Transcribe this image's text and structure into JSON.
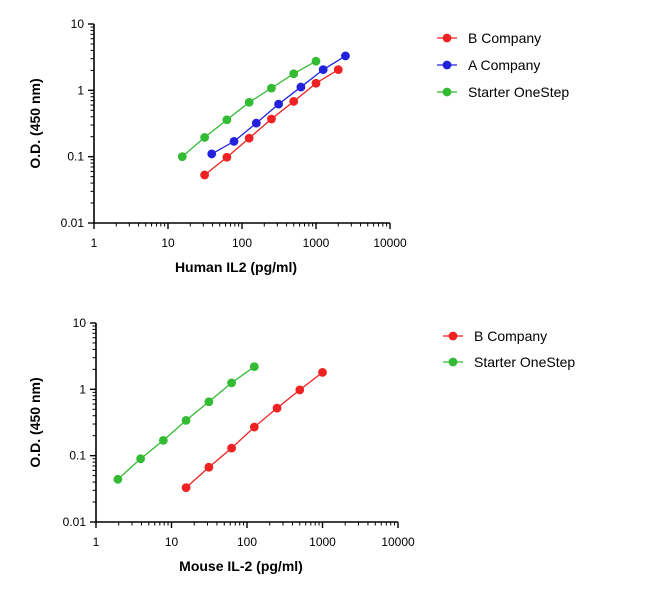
{
  "chart_data": [
    {
      "type": "scatter",
      "title": "",
      "xlabel": "Human IL2 (pg/ml)",
      "ylabel": "O.D. (450 nm)",
      "xscale": "log",
      "yscale": "log",
      "xlim": [
        1,
        10000
      ],
      "ylim": [
        0.01,
        10
      ],
      "xticks": [
        "1",
        "10",
        "100",
        "1000",
        "10000"
      ],
      "yticks": [
        "0.01",
        "0.1",
        "1",
        "10"
      ],
      "grid": false,
      "legend": "right",
      "series": [
        {
          "name": "B Company",
          "color": "#ee2222",
          "x": [
            31.25,
            62.5,
            125,
            250,
            500,
            1000,
            2000
          ],
          "y": [
            0.053,
            0.098,
            0.19,
            0.37,
            0.68,
            1.28,
            2.05
          ]
        },
        {
          "name": "A Company",
          "color": "#2222dd",
          "x": [
            39,
            78,
            156,
            312.5,
            625,
            1250,
            2500
          ],
          "y": [
            0.11,
            0.17,
            0.32,
            0.62,
            1.12,
            2.05,
            3.3
          ]
        },
        {
          "name": "Starter OneStep",
          "color": "#33bb33",
          "x": [
            15.6,
            31.25,
            62.5,
            125,
            250,
            500,
            1000
          ],
          "y": [
            0.1,
            0.195,
            0.36,
            0.66,
            1.08,
            1.78,
            2.75
          ]
        }
      ]
    },
    {
      "type": "scatter",
      "title": "",
      "xlabel": "Mouse IL-2 (pg/ml)",
      "ylabel": "O.D. (450 nm)",
      "xscale": "log",
      "yscale": "log",
      "xlim": [
        1,
        10000
      ],
      "ylim": [
        0.01,
        10
      ],
      "xticks": [
        "1",
        "10",
        "100",
        "1000",
        "10000"
      ],
      "yticks": [
        "0.01",
        "0.1",
        "1",
        "10"
      ],
      "grid": false,
      "legend": "right",
      "series": [
        {
          "name": "B Company",
          "color": "#ee2222",
          "x": [
            15.6,
            31.25,
            62.5,
            125,
            250,
            500,
            1000
          ],
          "y": [
            0.033,
            0.067,
            0.13,
            0.27,
            0.52,
            0.98,
            1.8
          ]
        },
        {
          "name": "Starter OneStep",
          "color": "#33bb33",
          "x": [
            1.95,
            3.9,
            7.8,
            15.6,
            31.25,
            62.5,
            125
          ],
          "y": [
            0.044,
            0.09,
            0.17,
            0.34,
            0.65,
            1.25,
            2.2
          ]
        }
      ]
    }
  ]
}
